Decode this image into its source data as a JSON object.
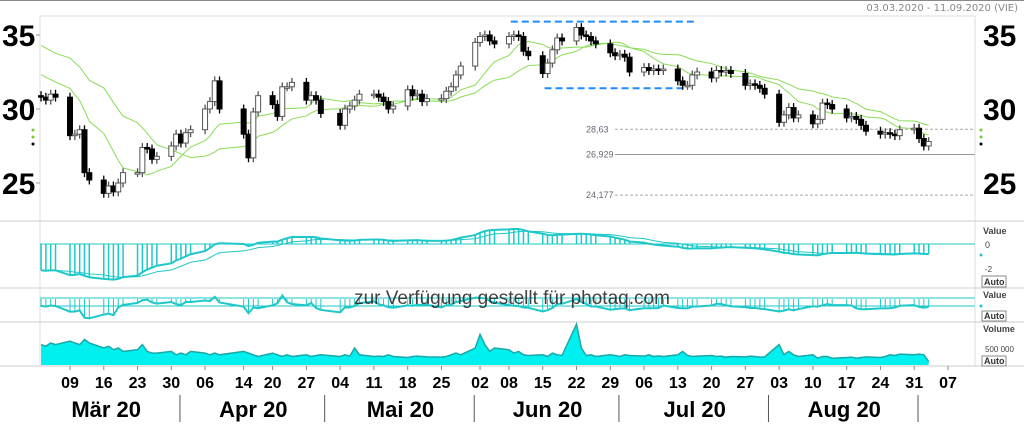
{
  "header": {
    "date_range": "03.03.2020 - 11.09.2020 (VIE)"
  },
  "watermark": "zur Verfügung gestellt für photaq.com",
  "colors": {
    "candle_up": "#ffffff",
    "candle_down": "#000000",
    "moving_average": "#88dd55",
    "indicator": "#1ec8c8",
    "volume_fill": "#00f0f0",
    "marker_lines": "#1e8cff"
  },
  "panels": {
    "macd": {
      "label": "Value",
      "ticks": [
        "0",
        "-2"
      ],
      "auto": "Auto"
    },
    "oscillator": {
      "label": "Value",
      "auto": "Auto"
    },
    "volume": {
      "label": "Volume",
      "tick": "500 000",
      "auto": "Auto"
    }
  },
  "chart_data": {
    "type": "candlestick",
    "y_ticks": [
      "35",
      "30",
      "25"
    ],
    "ylim": [
      23,
      36.5
    ],
    "levels": [
      {
        "value": 28.63,
        "label": "28,63",
        "style": "dashed"
      },
      {
        "value": 26.929,
        "label": "26,929",
        "style": "solid"
      },
      {
        "value": 24.177,
        "label": "24,177",
        "style": "dashed"
      }
    ],
    "marker_lines": [
      {
        "value": 35.9,
        "from": "2020-06-09",
        "to": "2020-07-16"
      },
      {
        "value": 31.4,
        "from": "2020-06-16",
        "to": "2020-07-14"
      }
    ],
    "x_ticks": [
      {
        "date": "2020-03-09",
        "label": "09"
      },
      {
        "date": "2020-03-16",
        "label": "16"
      },
      {
        "date": "2020-03-23",
        "label": "23"
      },
      {
        "date": "2020-03-30",
        "label": "30"
      },
      {
        "date": "2020-04-06",
        "label": "06"
      },
      {
        "date": "2020-04-14",
        "label": "14"
      },
      {
        "date": "2020-04-20",
        "label": "20"
      },
      {
        "date": "2020-04-27",
        "label": "27"
      },
      {
        "date": "2020-05-04",
        "label": "04"
      },
      {
        "date": "2020-05-11",
        "label": "11"
      },
      {
        "date": "2020-05-18",
        "label": "18"
      },
      {
        "date": "2020-05-25",
        "label": "25"
      },
      {
        "date": "2020-06-02",
        "label": "02"
      },
      {
        "date": "2020-06-08",
        "label": "08"
      },
      {
        "date": "2020-06-15",
        "label": "15"
      },
      {
        "date": "2020-06-22",
        "label": "22"
      },
      {
        "date": "2020-06-29",
        "label": "29"
      },
      {
        "date": "2020-07-06",
        "label": "06"
      },
      {
        "date": "2020-07-13",
        "label": "13"
      },
      {
        "date": "2020-07-20",
        "label": "20"
      },
      {
        "date": "2020-07-27",
        "label": "27"
      },
      {
        "date": "2020-08-03",
        "label": "03"
      },
      {
        "date": "2020-08-10",
        "label": "10"
      },
      {
        "date": "2020-08-17",
        "label": "17"
      },
      {
        "date": "2020-08-24",
        "label": "24"
      },
      {
        "date": "2020-08-31",
        "label": "31"
      },
      {
        "date": "2020-09-07",
        "label": "07"
      }
    ],
    "months": [
      {
        "label": "Mär 20",
        "start": "2020-03-01",
        "end": "2020-04-01"
      },
      {
        "label": "Apr 20",
        "start": "2020-04-01",
        "end": "2020-05-01"
      },
      {
        "label": "Mai 20",
        "start": "2020-05-01",
        "end": "2020-06-01"
      },
      {
        "label": "Jun 20",
        "start": "2020-06-01",
        "end": "2020-07-01"
      },
      {
        "label": "Jul 20",
        "start": "2020-07-01",
        "end": "2020-08-01"
      },
      {
        "label": "Aug 20",
        "start": "2020-08-01",
        "end": "2020-09-01"
      }
    ],
    "dates": [
      "03-03",
      "03-04",
      "03-05",
      "03-06",
      "03-09",
      "03-10",
      "03-11",
      "03-12",
      "03-13",
      "03-16",
      "03-17",
      "03-18",
      "03-19",
      "03-20",
      "03-23",
      "03-24",
      "03-25",
      "03-26",
      "03-27",
      "03-30",
      "03-31",
      "04-01",
      "04-02",
      "04-03",
      "04-06",
      "04-07",
      "04-08",
      "04-09",
      "04-14",
      "04-15",
      "04-16",
      "04-17",
      "04-20",
      "04-21",
      "04-22",
      "04-23",
      "04-24",
      "04-27",
      "04-28",
      "04-29",
      "04-30",
      "05-04",
      "05-05",
      "05-06",
      "05-07",
      "05-08",
      "05-11",
      "05-12",
      "05-13",
      "05-14",
      "05-15",
      "05-18",
      "05-19",
      "05-20",
      "05-21",
      "05-22",
      "05-25",
      "05-26",
      "05-27",
      "05-28",
      "05-29",
      "06-01",
      "06-02",
      "06-03",
      "06-04",
      "06-05",
      "06-08",
      "06-09",
      "06-10",
      "06-11",
      "06-12",
      "06-15",
      "06-16",
      "06-17",
      "06-18",
      "06-19",
      "06-22",
      "06-23",
      "06-24",
      "06-25",
      "06-26",
      "06-29",
      "06-30",
      "07-01",
      "07-02",
      "07-03",
      "07-06",
      "07-07",
      "07-08",
      "07-09",
      "07-10",
      "07-13",
      "07-14",
      "07-15",
      "07-16",
      "07-17",
      "07-20",
      "07-21",
      "07-22",
      "07-23",
      "07-24",
      "07-27",
      "07-28",
      "07-29",
      "07-30",
      "07-31",
      "08-03",
      "08-04",
      "08-05",
      "08-06",
      "08-07",
      "08-10",
      "08-11",
      "08-12",
      "08-13",
      "08-14",
      "08-17",
      "08-18",
      "08-19",
      "08-20",
      "08-21",
      "08-24",
      "08-25",
      "08-26",
      "08-27",
      "08-28",
      "08-31",
      "09-01",
      "09-02",
      "09-03"
    ],
    "close": [
      30.8,
      30.6,
      31.0,
      30.8,
      28.2,
      28.3,
      28.6,
      25.7,
      25.2,
      24.3,
      24.8,
      24.4,
      25.0,
      25.7,
      25.7,
      27.4,
      27.3,
      26.6,
      26.8,
      27.5,
      28.3,
      27.7,
      28.4,
      28.6,
      30.0,
      30.5,
      31.9,
      30.0,
      28.3,
      26.7,
      29.8,
      30.9,
      30.3,
      29.5,
      31.5,
      31.5,
      31.8,
      30.6,
      30.9,
      30.6,
      29.7,
      28.9,
      30.0,
      30.2,
      30.6,
      31.0,
      31.0,
      30.8,
      30.5,
      30.0,
      30.2,
      31.3,
      30.9,
      31.0,
      30.5,
      30.7,
      30.7,
      31.2,
      31.5,
      32.3,
      32.9,
      34.5,
      34.9,
      35.0,
      34.6,
      34.4,
      34.9,
      35.0,
      34.9,
      33.9,
      33.6,
      32.4,
      33.1,
      34.0,
      34.8,
      34.6,
      35.5,
      35.0,
      34.9,
      34.6,
      34.4,
      33.8,
      33.6,
      33.7,
      33.5,
      32.5,
      32.8,
      32.6,
      32.7,
      32.6,
      32.7,
      31.9,
      31.6,
      31.6,
      32.3,
      32.5,
      32.1,
      32.6,
      32.5,
      32.6,
      32.4,
      31.6,
      31.7,
      31.6,
      31.4,
      31.0,
      29.1,
      29.6,
      30.1,
      29.4,
      29.6,
      29.0,
      29.3,
      30.4,
      30.3,
      30.0,
      29.4,
      29.5,
      29.3,
      28.9,
      28.5,
      28.3,
      28.4,
      28.3,
      28.2,
      28.6,
      28.7,
      28.0,
      27.5,
      27.8
    ],
    "volume": [
      600000,
      550000,
      650000,
      600000,
      700000,
      650000,
      600000,
      750000,
      650000,
      500000,
      550000,
      450000,
      500000,
      400000,
      450000,
      600000,
      400000,
      350000,
      350000,
      400000,
      300000,
      350000,
      300000,
      400000,
      350000,
      300000,
      350000,
      300000,
      400000,
      350000,
      300000,
      250000,
      350000,
      300000,
      250000,
      300000,
      250000,
      300000,
      250000,
      280000,
      300000,
      250000,
      300000,
      260000,
      500000,
      300000,
      250000,
      260000,
      250000,
      300000,
      250000,
      220000,
      250000,
      260000,
      250000,
      240000,
      230000,
      250000,
      300000,
      350000,
      300000,
      500000,
      900000,
      600000,
      400000,
      500000,
      450000,
      350000,
      400000,
      300000,
      280000,
      300000,
      250000,
      350000,
      300000,
      280000,
      1200000,
      500000,
      280000,
      300000,
      250000,
      300000,
      280000,
      250000,
      300000,
      280000,
      260000,
      300000,
      250000,
      270000,
      250000,
      300000,
      400000,
      280000,
      250000,
      260000,
      280000,
      250000,
      260000,
      230000,
      250000,
      240000,
      260000,
      250000,
      230000,
      240000,
      600000,
      300000,
      400000,
      300000,
      250000,
      300000,
      200000,
      250000,
      250000,
      200000,
      220000,
      230000,
      200000,
      220000,
      240000,
      220000,
      250000,
      300000,
      280000,
      320000,
      300000,
      320000,
      300000,
      100000
    ]
  }
}
